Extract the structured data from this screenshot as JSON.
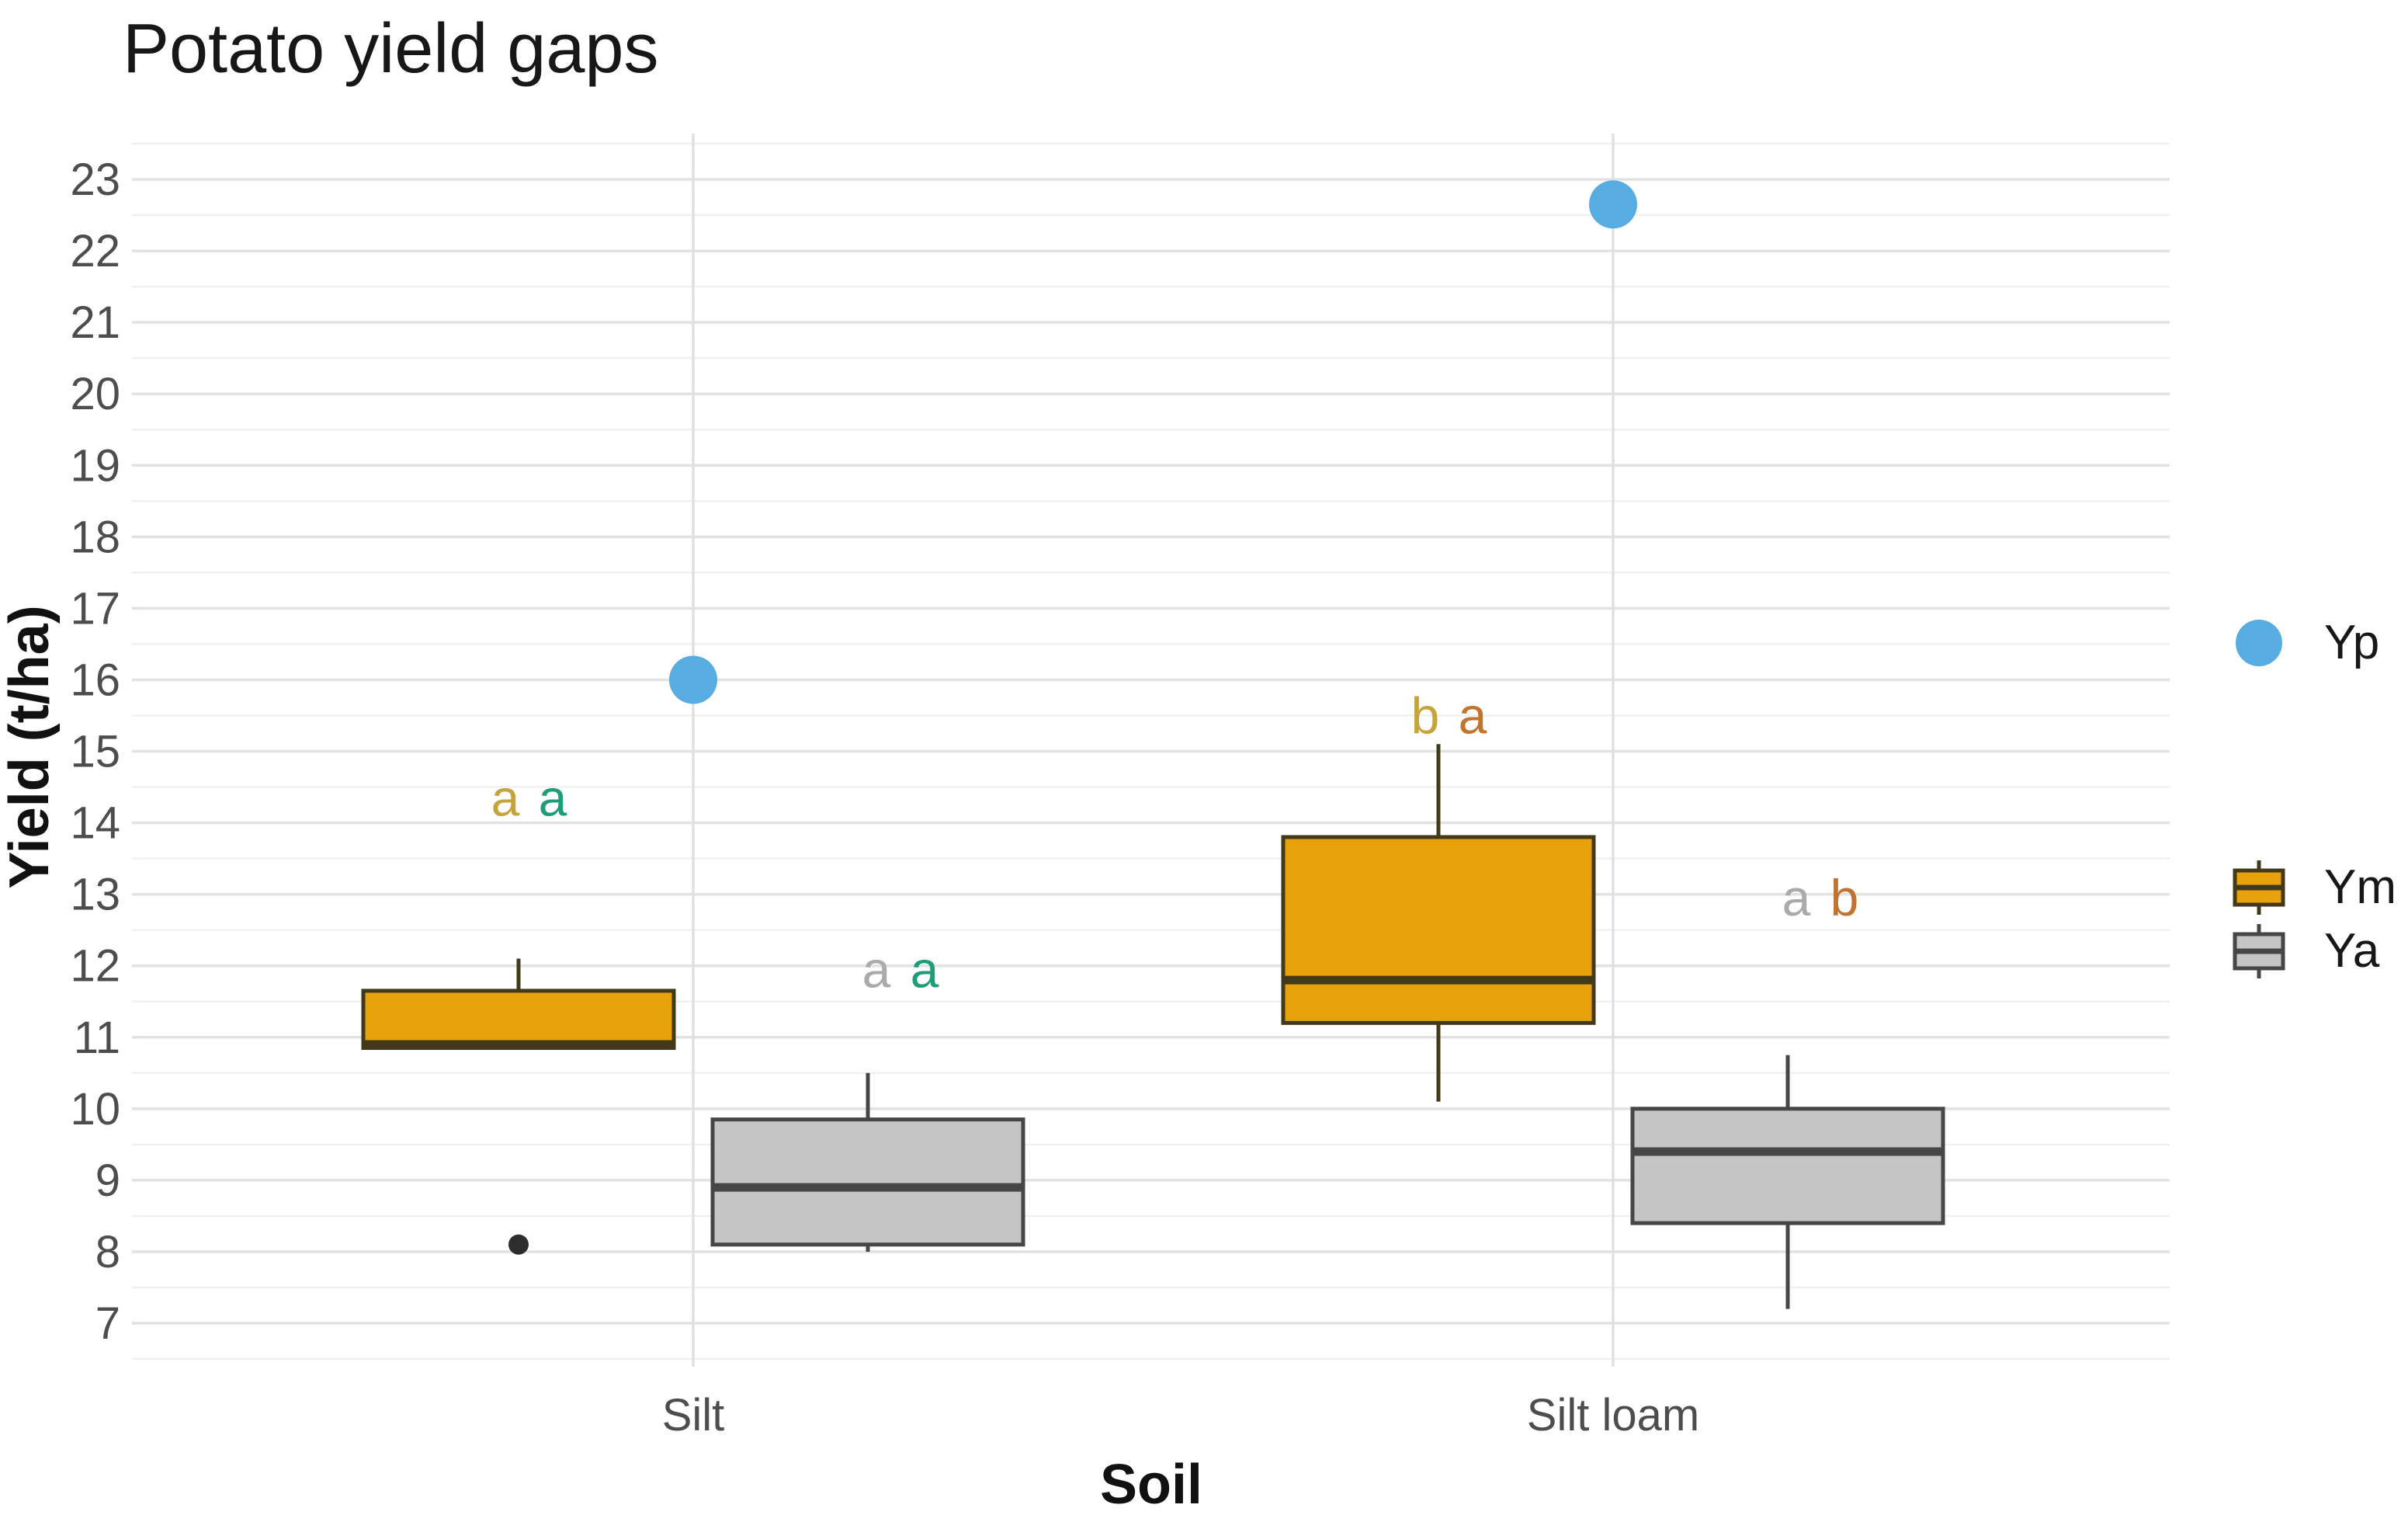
{
  "page": {
    "background": "#ffffff"
  },
  "chart_data": {
    "type": "boxplot",
    "title": "Potato yield gaps",
    "xlabel": "Soil",
    "ylabel": "Yield (t/ha)",
    "categories": [
      "Silt",
      "Silt loam"
    ],
    "y_axis": {
      "ticks": [
        7,
        8,
        9,
        10,
        11,
        12,
        13,
        14,
        15,
        16,
        17,
        18,
        19,
        20,
        21,
        22,
        23
      ],
      "min": 6.4,
      "max": 23.7,
      "minor_step": 0.5
    },
    "grid": {
      "major_color": "#e2e2e2",
      "minor_color": "#f0f0f0",
      "vertical_color": "#e0e0e0",
      "background": "#ffffff"
    },
    "series": [
      {
        "name": "Ym",
        "fill": "#E7A10A",
        "stroke": "#42381a",
        "boxes": [
          {
            "category": "Silt",
            "whisker_low": null,
            "q1": 10.85,
            "median": 10.9,
            "q3": 11.65,
            "whisker_high": 12.1,
            "outliers": [
              8.1
            ]
          },
          {
            "category": "Silt loam",
            "whisker_low": 10.1,
            "q1": 11.2,
            "median": 11.8,
            "q3": 13.8,
            "whisker_high": 15.1,
            "outliers": []
          }
        ]
      },
      {
        "name": "Ya",
        "fill": "#C5C5C5",
        "stroke": "#464646",
        "boxes": [
          {
            "category": "Silt",
            "whisker_low": 8.0,
            "q1": 8.1,
            "median": 8.9,
            "q3": 9.85,
            "whisker_high": 10.5,
            "outliers": []
          },
          {
            "category": "Silt loam",
            "whisker_low": 7.2,
            "q1": 8.4,
            "median": 9.4,
            "q3": 10.0,
            "whisker_high": 10.75,
            "outliers": []
          }
        ]
      }
    ],
    "point_series": {
      "name": "Yp",
      "color": "#57ade2",
      "values": [
        {
          "category": "Silt",
          "y": 16.0
        },
        {
          "category": "Silt loam",
          "y": 22.65
        }
      ]
    },
    "annotations": [
      {
        "category": "Silt",
        "series": "Ym",
        "y": 14.35,
        "letters": [
          {
            "text": "a",
            "color": "#C6A43C"
          },
          {
            "text": "a",
            "color": "#1E9E78"
          }
        ]
      },
      {
        "category": "Silt",
        "series": "Ya",
        "y": 11.95,
        "letters": [
          {
            "text": "a",
            "color": "#AAAAAA"
          },
          {
            "text": "a",
            "color": "#1E9E78"
          }
        ]
      },
      {
        "category": "Silt loam",
        "series": "Ym",
        "y": 15.5,
        "letters": [
          {
            "text": "b",
            "color": "#C6A43C"
          },
          {
            "text": "a",
            "color": "#C07430"
          }
        ]
      },
      {
        "category": "Silt loam",
        "series": "Ya",
        "y": 12.95,
        "letters": [
          {
            "text": "a",
            "color": "#AAAAAA"
          },
          {
            "text": "b",
            "color": "#C07430"
          }
        ]
      }
    ],
    "outlier_color": "#2d2d2d",
    "legend_position": "right"
  }
}
